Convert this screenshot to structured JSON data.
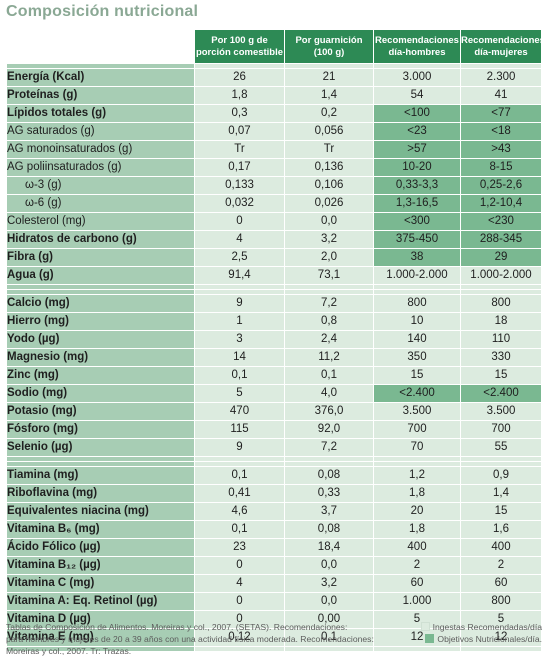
{
  "title": "Composición nutricional",
  "headers": {
    "per100": "Por 100 g de porción comestible",
    "guarnicion": "Por guarnición (100 g)",
    "rec_hombres": "Recomendaciones día-hombres",
    "rec_mujeres": "Recomendaciones día-mujeres"
  },
  "groups": [
    {
      "rows": [
        {
          "label": "Energía (Kcal)",
          "bold": true,
          "v": [
            "26",
            "21",
            "3.000",
            "2.300"
          ],
          "rec": "ing"
        },
        {
          "label": "Proteínas (g)",
          "bold": true,
          "v": [
            "1,8",
            "1,4",
            "54",
            "41"
          ],
          "rec": "ing"
        },
        {
          "label": "Lípidos totales (g)",
          "bold": true,
          "v": [
            "0,3",
            "0,2",
            "<100",
            "<77"
          ],
          "rec": "obj"
        },
        {
          "label": "AG saturados (g)",
          "bold": false,
          "v": [
            "0,07",
            "0,056",
            "<23",
            "<18"
          ],
          "rec": "obj"
        },
        {
          "label": "AG monoinsaturados (g)",
          "bold": false,
          "v": [
            "Tr",
            "Tr",
            ">57",
            ">43"
          ],
          "rec": "obj"
        },
        {
          "label": "AG poliinsaturados (g)",
          "bold": false,
          "v": [
            "0,17",
            "0,136",
            "10-20",
            "8-15"
          ],
          "rec": "obj"
        },
        {
          "label": "ω-3 (g)",
          "bold": false,
          "sub": true,
          "v": [
            "0,133",
            "0,106",
            "0,33-3,3",
            "0,25-2,6"
          ],
          "rec": "obj"
        },
        {
          "label": "ω-6 (g)",
          "bold": false,
          "sub": true,
          "v": [
            "0,032",
            "0,026",
            "1,3-16,5",
            "1,2-10,4"
          ],
          "rec": "obj"
        },
        {
          "label": "Colesterol (mg)",
          "bold": false,
          "v": [
            "0",
            "0,0",
            "<300",
            "<230"
          ],
          "rec": "obj"
        },
        {
          "label": "Hidratos de carbono (g)",
          "bold": true,
          "v": [
            "4",
            "3,2",
            "375-450",
            "288-345"
          ],
          "rec": "obj"
        },
        {
          "label": "Fibra (g)",
          "bold": true,
          "v": [
            "2,5",
            "2,0",
            "38",
            "29"
          ],
          "rec": "obj"
        },
        {
          "label": "Agua (g)",
          "bold": true,
          "v": [
            "91,4",
            "73,1",
            "1.000-2.000",
            "1.000-2.000"
          ],
          "rec": "ing"
        }
      ]
    },
    {
      "rows": [
        {
          "label": "Calcio (mg)",
          "bold": true,
          "v": [
            "9",
            "7,2",
            "800",
            "800"
          ],
          "rec": "ing"
        },
        {
          "label": "Hierro (mg)",
          "bold": true,
          "v": [
            "1",
            "0,8",
            "10",
            "18"
          ],
          "rec": "ing"
        },
        {
          "label": "Yodo (µg)",
          "bold": true,
          "v": [
            "3",
            "2,4",
            "140",
            "110"
          ],
          "rec": "ing"
        },
        {
          "label": "Magnesio (mg)",
          "bold": true,
          "v": [
            "14",
            "11,2",
            "350",
            "330"
          ],
          "rec": "ing"
        },
        {
          "label": "Zinc (mg)",
          "bold": true,
          "v": [
            "0,1",
            "0,1",
            "15",
            "15"
          ],
          "rec": "ing"
        },
        {
          "label": "Sodio (mg)",
          "bold": true,
          "v": [
            "5",
            "4,0",
            "<2.400",
            "<2.400"
          ],
          "rec": "obj"
        },
        {
          "label": "Potasio (mg)",
          "bold": true,
          "v": [
            "470",
            "376,0",
            "3.500",
            "3.500"
          ],
          "rec": "ing"
        },
        {
          "label": "Fósforo (mg)",
          "bold": true,
          "v": [
            "115",
            "92,0",
            "700",
            "700"
          ],
          "rec": "ing"
        },
        {
          "label": "Selenio (µg)",
          "bold": true,
          "v": [
            "9",
            "7,2",
            "70",
            "55"
          ],
          "rec": "ing"
        }
      ]
    },
    {
      "rows": [
        {
          "label": "Tiamina (mg)",
          "bold": true,
          "v": [
            "0,1",
            "0,08",
            "1,2",
            "0,9"
          ],
          "rec": "ing"
        },
        {
          "label": "Riboflavina (mg)",
          "bold": true,
          "v": [
            "0,41",
            "0,33",
            "1,8",
            "1,4"
          ],
          "rec": "ing"
        },
        {
          "label": "Equivalentes niacina (mg)",
          "bold": true,
          "v": [
            "4,6",
            "3,7",
            "20",
            "15"
          ],
          "rec": "ing"
        },
        {
          "label": "Vitamina B₆ (mg)",
          "bold": true,
          "v": [
            "0,1",
            "0,08",
            "1,8",
            "1,6"
          ],
          "rec": "ing"
        },
        {
          "label": "Ácido Fólico (µg)",
          "bold": true,
          "v": [
            "23",
            "18,4",
            "400",
            "400"
          ],
          "rec": "ing"
        },
        {
          "label": "Vitamina B₁₂ (µg)",
          "bold": true,
          "v": [
            "0",
            "0,0",
            "2",
            "2"
          ],
          "rec": "ing"
        },
        {
          "label": "Vitamina C (mg)",
          "bold": true,
          "v": [
            "4",
            "3,2",
            "60",
            "60"
          ],
          "rec": "ing"
        },
        {
          "label": "Vitamina A: Eq. Retinol (µg)",
          "bold": true,
          "v": [
            "0",
            "0,0",
            "1.000",
            "800"
          ],
          "rec": "ing"
        },
        {
          "label": "Vitamina D (µg)",
          "bold": true,
          "v": [
            "0",
            "0,00",
            "5",
            "5"
          ],
          "rec": "ing"
        },
        {
          "label": "Vitamina E (mg)",
          "bold": true,
          "v": [
            "0,12",
            "0,1",
            "12",
            "12"
          ],
          "rec": "ing"
        }
      ]
    }
  ],
  "legend": {
    "line1_left": "Tablas de Composición de Alimentos. Moreiras y col., 2007. (SETAS). Recomendaciones:",
    "line1_right": "Ingestas Recomendadas/día",
    "line2_left": "para hombres y mujeres de 20 a 39 años con una actividad física moderada. Recomendaciones:",
    "line2_right": "Objetivos Nutricionales/día.",
    "line3": "Moreiras y col., 2007. Tr: Trazas."
  },
  "colors": {
    "header_green": "#2d8a55",
    "label_green": "#a7cdb4",
    "value_light": "#dcebdf",
    "objective_green": "#7ab891",
    "title_color": "#8aa894"
  }
}
